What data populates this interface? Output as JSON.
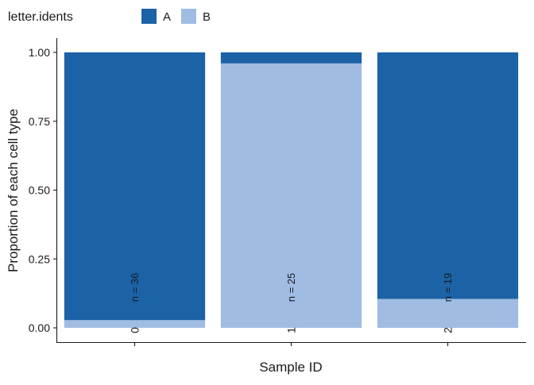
{
  "chart_data": {
    "type": "bar",
    "stacked": true,
    "title": "",
    "xlabel": "Sample ID",
    "ylabel": "Proportion of each cell type",
    "categories": [
      "0",
      "1",
      "2"
    ],
    "ylim": [
      0,
      1
    ],
    "yticks": [
      "0.00",
      "0.25",
      "0.50",
      "0.75",
      "1.00"
    ],
    "legend": {
      "title": "letter.idents",
      "placement": "top-left"
    },
    "series": [
      {
        "name": "B",
        "color": "#a0bce3",
        "values": [
          0.028,
          0.96,
          0.105
        ]
      },
      {
        "name": "A",
        "color": "#1c62a6",
        "values": [
          0.972,
          0.04,
          0.895
        ]
      }
    ],
    "annotations": [
      "n = 36",
      "n = 25",
      "n = 19"
    ],
    "grid": false
  }
}
